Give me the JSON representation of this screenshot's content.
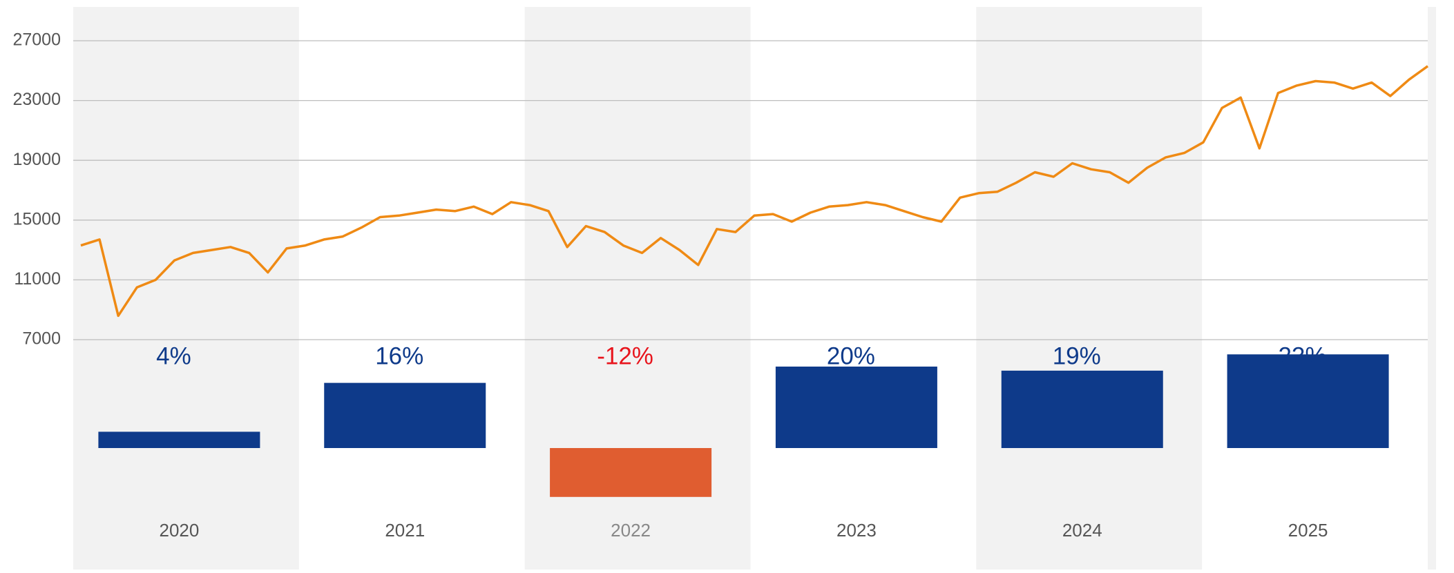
{
  "chart_data": [
    {
      "type": "line",
      "ylim": [
        7000,
        27000
      ],
      "yticks": [
        7000,
        11000,
        15000,
        19000,
        23000,
        27000
      ],
      "grid": true,
      "series": [
        {
          "color": "#ef8a14",
          "values": [
            13300,
            13700,
            8600,
            10500,
            11000,
            12300,
            12800,
            13000,
            13200,
            12800,
            11500,
            13100,
            13300,
            13700,
            13900,
            14500,
            15200,
            15300,
            15500,
            15700,
            15600,
            15900,
            15400,
            16200,
            16000,
            15600,
            13200,
            14600,
            14200,
            13300,
            12800,
            13800,
            13000,
            12000,
            14400,
            14200,
            15300,
            15400,
            14900,
            15500,
            15900,
            16000,
            16200,
            16000,
            15600,
            15200,
            14900,
            16500,
            16800,
            16900,
            17500,
            18200,
            17900,
            18800,
            18400,
            18200,
            17500,
            18500,
            19200,
            19500,
            20200,
            22500,
            23200,
            19800,
            23500,
            24000,
            24300,
            24200,
            23800,
            24200,
            23300,
            24400,
            25300
          ]
        }
      ]
    },
    {
      "type": "bar",
      "categories": [
        "2020",
        "2021",
        "2022",
        "2023",
        "2024",
        "2025"
      ],
      "values": [
        4,
        16,
        -12,
        20,
        19,
        23
      ],
      "value_labels": [
        "4%",
        "16%",
        "-12%",
        "20%",
        "19%",
        "23%"
      ],
      "colors": [
        "#0e3a8a",
        "#0e3a8a",
        "#e05d30",
        "#0e3a8a",
        "#0e3a8a",
        "#0e3a8a"
      ],
      "label_colors": [
        "#0e3a8a",
        "#0e3a8a",
        "#e8141c",
        "#0e3a8a",
        "#0e3a8a",
        "#0e3a8a"
      ]
    }
  ]
}
